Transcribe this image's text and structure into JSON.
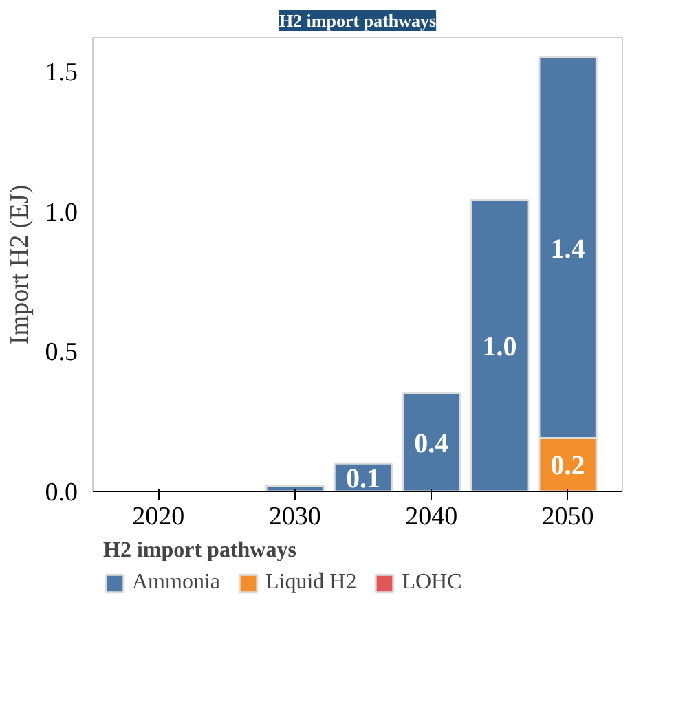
{
  "chart_data": {
    "type": "bar",
    "title": "H2 import pathways",
    "ylabel": "Import H2 (EJ)",
    "legend_title": "H2 import pathways",
    "x": [
      2030,
      2035,
      2040,
      2045,
      2050
    ],
    "stacked": true,
    "series": [
      {
        "name": "LOHC",
        "color": "#e15759",
        "values": [
          null,
          null,
          null,
          null,
          null
        ]
      },
      {
        "name": "Liquid H2",
        "color": "#f28e2b",
        "values": [
          null,
          null,
          null,
          null,
          0.19
        ],
        "value_labels": [
          null,
          null,
          null,
          null,
          "0.2"
        ]
      },
      {
        "name": "Ammonia",
        "color": "#4e79a7",
        "values": [
          0.02,
          0.1,
          0.35,
          1.04,
          1.36
        ],
        "value_labels": [
          null,
          "0.1",
          "0.4",
          "1.0",
          "1.4"
        ]
      }
    ],
    "xlim": [
      2015.2,
      2054
    ],
    "xticks": [
      2020,
      2030,
      2040,
      2050
    ],
    "ylim": [
      0,
      1.62
    ],
    "yticks": [
      {
        "value": 0,
        "label": "0.0"
      },
      {
        "value": 0.5,
        "label": "0.5"
      },
      {
        "value": 1,
        "label": "1.0"
      },
      {
        "value": 1.5,
        "label": "1.5"
      }
    ],
    "grid": false,
    "legend": "bottom"
  }
}
